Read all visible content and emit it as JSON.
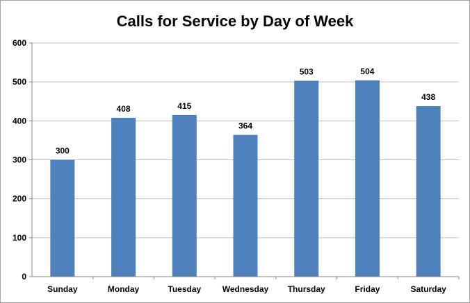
{
  "chart_data": {
    "type": "bar",
    "title": "Calls for Service by Day of Week",
    "categories": [
      "Sunday",
      "Monday",
      "Tuesday",
      "Wednesday",
      "Thursday",
      "Friday",
      "Saturday"
    ],
    "values": [
      300,
      408,
      415,
      364,
      503,
      504,
      438
    ],
    "data_labels": [
      "300",
      "408",
      "415",
      "364",
      "503",
      "504",
      "438"
    ],
    "ylim": [
      0,
      600
    ],
    "yticks": [
      0,
      100,
      200,
      300,
      400,
      500,
      600
    ],
    "grid": true,
    "legend": "none",
    "bar_color": "#4F81BD"
  }
}
